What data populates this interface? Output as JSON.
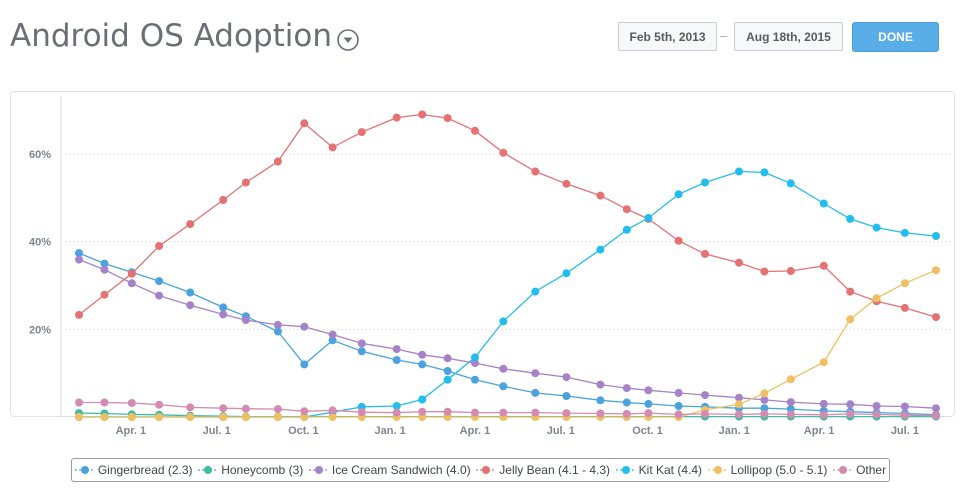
{
  "header": {
    "title": "Android OS Adoption",
    "start_date": "Feb 5th, 2013",
    "separator": "–",
    "end_date": "Aug 18th, 2015",
    "done_label": "DONE"
  },
  "chart_data": {
    "type": "line",
    "title": "Android OS Adoption",
    "xlabel": "",
    "ylabel": "",
    "x_tick_labels": [
      "Apr. 1",
      "Jul. 1",
      "Oct. 1",
      "Jan. 1",
      "Apr. 1",
      "Jul. 1",
      "Oct. 1",
      "Jan. 1",
      "Apr. 1",
      "Jul. 1"
    ],
    "x_tick_dates": [
      "2013-04-01",
      "2013-07-01",
      "2013-10-01",
      "2014-01-01",
      "2014-04-01",
      "2014-07-01",
      "2014-10-01",
      "2015-01-01",
      "2015-04-01",
      "2015-07-01"
    ],
    "x": [
      "2013-02-05",
      "2013-03-04",
      "2013-04-02",
      "2013-05-01",
      "2013-06-03",
      "2013-07-08",
      "2013-08-01",
      "2013-09-04",
      "2013-10-02",
      "2013-11-01",
      "2013-12-02",
      "2014-01-08",
      "2014-02-04",
      "2014-03-03",
      "2014-04-01",
      "2014-05-01",
      "2014-06-04",
      "2014-07-07",
      "2014-08-12",
      "2014-09-09",
      "2014-10-02",
      "2014-11-03",
      "2014-12-01",
      "2015-01-06",
      "2015-02-02",
      "2015-03-02",
      "2015-04-06",
      "2015-05-04",
      "2015-06-01",
      "2015-07-01",
      "2015-08-03"
    ],
    "ylim": [
      0,
      70
    ],
    "y_ticks": [
      20,
      40,
      60
    ],
    "y_tick_labels": [
      "20%",
      "40%",
      "60%"
    ],
    "grid": true,
    "legend_position": "bottom",
    "series": [
      {
        "name": "Gingerbread (2.3)",
        "color": "#4aa3df",
        "values": [
          37.4,
          35.0,
          33.0,
          31.0,
          28.4,
          25.0,
          23.0,
          19.5,
          12.0,
          17.5,
          15.0,
          13.0,
          12.0,
          10.5,
          8.5,
          7.0,
          5.5,
          4.8,
          3.8,
          3.3,
          3.0,
          2.5,
          2.3,
          2.0,
          2.0,
          1.8,
          1.4,
          1.2,
          1.0,
          0.8,
          0.5
        ]
      },
      {
        "name": "Honeycomb (3)",
        "color": "#3ebba3",
        "values": [
          0.9,
          0.8,
          0.6,
          0.5,
          0.3,
          0.2,
          0.1,
          0.1,
          0.1,
          0.1,
          0.1,
          0.1,
          0.1,
          0.1,
          0.1,
          0.1,
          0.1,
          0.1,
          0.1,
          0.1,
          0.1,
          0.1,
          0.1,
          0.1,
          0.1,
          0.1,
          0.1,
          0.1,
          0.1,
          0.1,
          0.1
        ]
      },
      {
        "name": "Ice Cream Sandwich (4.0)",
        "color": "#a683c8",
        "values": [
          35.9,
          33.6,
          30.5,
          27.7,
          25.5,
          23.4,
          22.1,
          21.0,
          20.6,
          18.8,
          16.8,
          15.5,
          14.2,
          13.4,
          12.3,
          11.0,
          10.0,
          9.1,
          7.4,
          6.6,
          6.1,
          5.5,
          5.0,
          4.4,
          3.9,
          3.4,
          3.0,
          2.9,
          2.5,
          2.4,
          2.0
        ]
      },
      {
        "name": "Jelly Bean (4.1 - 4.3)",
        "color": "#e57173",
        "values": [
          23.3,
          27.9,
          32.7,
          39.0,
          44.0,
          49.5,
          53.5,
          58.3,
          67.0,
          61.5,
          65.0,
          68.3,
          69.0,
          68.2,
          65.3,
          60.3,
          56.0,
          53.2,
          50.5,
          47.4,
          45.2,
          40.2,
          37.2,
          35.2,
          33.2,
          33.3,
          34.5,
          28.6,
          26.4,
          24.9,
          22.8
        ]
      },
      {
        "name": "Kit Kat (4.4)",
        "color": "#22bdee",
        "values": [
          0,
          0,
          0,
          0,
          0,
          0,
          0,
          0,
          0,
          1.1,
          2.3,
          2.5,
          4.0,
          8.5,
          13.6,
          21.8,
          28.6,
          32.8,
          38.2,
          42.7,
          45.4,
          50.8,
          53.5,
          56.0,
          55.8,
          53.3,
          48.7,
          45.2,
          43.2,
          42.0,
          41.3
        ]
      },
      {
        "name": "Lollipop (5.0 - 5.1)",
        "color": "#f0bf61",
        "values": [
          0,
          0,
          0,
          0,
          0,
          0,
          0,
          0,
          0,
          0,
          0,
          0,
          0,
          0,
          0,
          0,
          0,
          0,
          0,
          0,
          0,
          0,
          1.6,
          2.9,
          5.4,
          8.6,
          12.5,
          22.3,
          27.1,
          30.5,
          33.5
        ]
      },
      {
        "name": "Other",
        "color": "#d48bb2",
        "values": [
          3.3,
          3.3,
          3.2,
          2.8,
          2.2,
          2.0,
          1.9,
          1.8,
          1.3,
          1.5,
          1.1,
          1.0,
          1.2,
          1.2,
          1.0,
          1.0,
          1.0,
          0.9,
          0.8,
          0.7,
          0.9,
          0.6,
          0.7,
          0.6,
          0.7,
          0.6,
          0.5,
          0.7,
          0.6,
          0.4,
          0.3
        ]
      }
    ]
  }
}
